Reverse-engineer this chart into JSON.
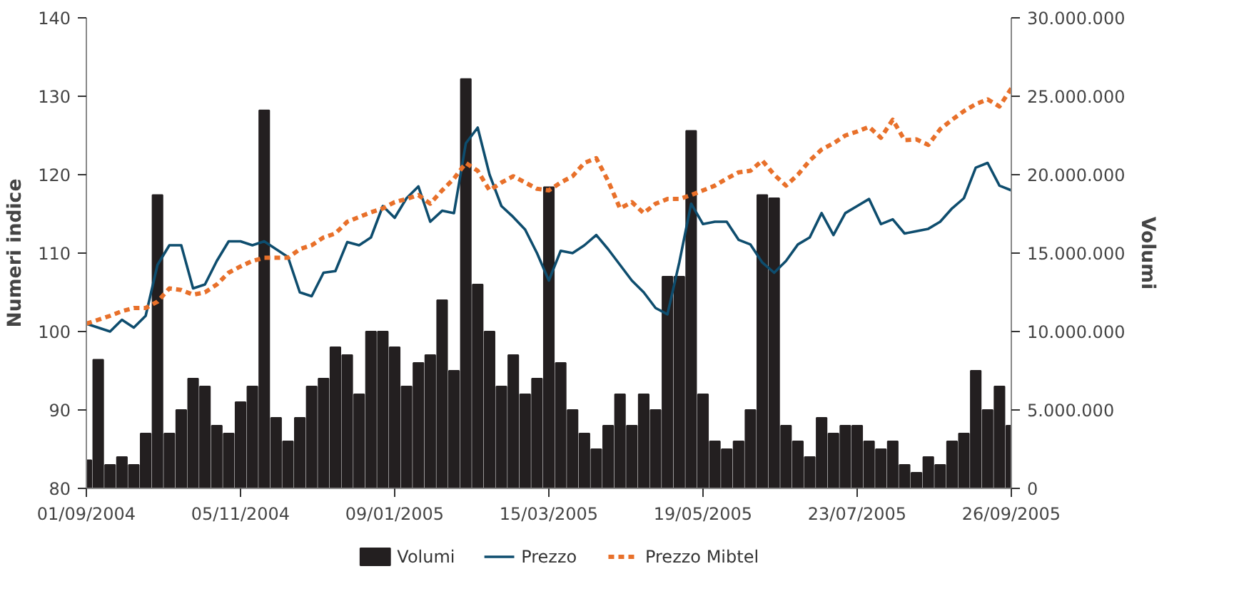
{
  "chart_data": {
    "type": "line",
    "ylabel": "Numeri indice",
    "y2label": "Volumi",
    "x": [
      "2004-09-01",
      "2004-09-06",
      "2004-09-11",
      "2004-09-16",
      "2004-09-21",
      "2004-09-26",
      "2004-10-01",
      "2004-10-06",
      "2004-10-11",
      "2004-10-16",
      "2004-10-21",
      "2004-10-26",
      "2004-10-31",
      "2004-11-05",
      "2004-11-10",
      "2004-11-15",
      "2004-11-20",
      "2004-11-25",
      "2004-11-30",
      "2004-12-05",
      "2004-12-10",
      "2004-12-15",
      "2004-12-20",
      "2004-12-25",
      "2004-12-30",
      "2005-01-04",
      "2005-01-09",
      "2005-01-14",
      "2005-01-19",
      "2005-01-24",
      "2005-01-29",
      "2005-02-03",
      "2005-02-08",
      "2005-02-13",
      "2005-02-18",
      "2005-02-23",
      "2005-02-28",
      "2005-03-05",
      "2005-03-10",
      "2005-03-15",
      "2005-03-20",
      "2005-03-25",
      "2005-03-30",
      "2005-04-04",
      "2005-04-09",
      "2005-04-14",
      "2005-04-19",
      "2005-04-24",
      "2005-04-29",
      "2005-05-04",
      "2005-05-09",
      "2005-05-14",
      "2005-05-19",
      "2005-05-24",
      "2005-05-29",
      "2005-06-03",
      "2005-06-08",
      "2005-06-13",
      "2005-06-18",
      "2005-06-23",
      "2005-06-28",
      "2005-07-03",
      "2005-07-08",
      "2005-07-13",
      "2005-07-18",
      "2005-07-23",
      "2005-07-28",
      "2005-08-02",
      "2005-08-07",
      "2005-08-12",
      "2005-08-17",
      "2005-08-22",
      "2005-08-27",
      "2005-09-01",
      "2005-09-06",
      "2005-09-11",
      "2005-09-16",
      "2005-09-21",
      "2005-09-26"
    ],
    "series": [
      {
        "name": "Volumi",
        "type": "bar",
        "axis": "y2",
        "color": "#231f20",
        "values": [
          1800000,
          8200000,
          1500000,
          2000000,
          1500000,
          3500000,
          18700000,
          3500000,
          5000000,
          7000000,
          6500000,
          4000000,
          3500000,
          5500000,
          6500000,
          24100000,
          4500000,
          3000000,
          4500000,
          6500000,
          7000000,
          9000000,
          8500000,
          6000000,
          10000000,
          10000000,
          9000000,
          6500000,
          8000000,
          8500000,
          12000000,
          7500000,
          26100000,
          13000000,
          10000000,
          6500000,
          8500000,
          6000000,
          7000000,
          19200000,
          8000000,
          5000000,
          3500000,
          2500000,
          4000000,
          6000000,
          4000000,
          6000000,
          5000000,
          13500000,
          13500000,
          22800000,
          6000000,
          3000000,
          2500000,
          3000000,
          5000000,
          18700000,
          18500000,
          4000000,
          3000000,
          2000000,
          4500000,
          3500000,
          4000000,
          4000000,
          3000000,
          2500000,
          3000000,
          1500000,
          1000000,
          2000000,
          1500000,
          3000000,
          3500000,
          7500000,
          5000000,
          6500000,
          4000000
        ]
      },
      {
        "name": "Prezzo",
        "line_style": "solid",
        "color": "#0e4d6e",
        "values": [
          101,
          100.5,
          100,
          101.5,
          100.5,
          102,
          108.5,
          111,
          111,
          105.5,
          106,
          109,
          111.5,
          111.5,
          111,
          111.5,
          110.5,
          109.5,
          105,
          104.5,
          107.5,
          107.7,
          111.4,
          111,
          112,
          116,
          114.5,
          117,
          118.5,
          114,
          115.4,
          115.1,
          124,
          126,
          120,
          116,
          114.6,
          113,
          110,
          106.5,
          110.3,
          110,
          111,
          112.3,
          110.5,
          108.5,
          106.5,
          105,
          103,
          102.2,
          108.8,
          116.3,
          113.7,
          114,
          114,
          111.7,
          111.1,
          108.8,
          107.5,
          109,
          111.1,
          112,
          115.1,
          112.3,
          115.1,
          116,
          116.9,
          113.7,
          114.3,
          112.5,
          112.8,
          113.1,
          114,
          115.7,
          117,
          120.9,
          121.5,
          118.6,
          118
        ]
      },
      {
        "name": "Prezzo Mibtel",
        "line_style": "dashed",
        "color": "#e8702a",
        "values": [
          101,
          101.5,
          102,
          102.6,
          103,
          103,
          103.8,
          105.5,
          105.3,
          104.7,
          105,
          106,
          107.5,
          108.3,
          109,
          109.4,
          109.4,
          109.4,
          110.5,
          111,
          112,
          112.5,
          114,
          114.6,
          115.2,
          115.7,
          116.5,
          116.9,
          117.4,
          116.3,
          118,
          119.5,
          121.5,
          120.5,
          118,
          119,
          119.8,
          119,
          118.2,
          118,
          119,
          119.8,
          121.5,
          122.1,
          119.2,
          115.7,
          116.5,
          115.1,
          116.3,
          116.9,
          116.9,
          117.4,
          118,
          118.6,
          119.5,
          120.3,
          120.5,
          121.8,
          120,
          118.6,
          120,
          121.8,
          123.2,
          124,
          125,
          125.5,
          126.1,
          124.7,
          127,
          124.4,
          124.5,
          123.8,
          125.8,
          127,
          128.1,
          129,
          129.6,
          128.7,
          131
        ]
      }
    ],
    "xlim": [
      "2004-09-01",
      "2005-09-26"
    ],
    "xticks": [
      {
        "value": "2004-09-01",
        "label": "01/09/2004"
      },
      {
        "value": "2004-11-05",
        "label": "05/11/2004"
      },
      {
        "value": "2005-01-09",
        "label": "09/01/2005"
      },
      {
        "value": "2005-03-15",
        "label": "15/03/2005"
      },
      {
        "value": "2005-05-19",
        "label": "19/05/2005"
      },
      {
        "value": "2005-07-23",
        "label": "23/07/2005"
      },
      {
        "value": "2005-09-26",
        "label": "26/09/2005"
      }
    ],
    "ylim": [
      80,
      140
    ],
    "yticks": [
      80,
      90,
      100,
      110,
      120,
      130,
      140
    ],
    "y2lim": [
      0,
      30000000
    ],
    "y2ticks": [
      {
        "value": 0,
        "label": "0"
      },
      {
        "value": 5000000,
        "label": "5.000.000"
      },
      {
        "value": 10000000,
        "label": "10.000.000"
      },
      {
        "value": 15000000,
        "label": "15.000.000"
      },
      {
        "value": 20000000,
        "label": "20.000.000"
      },
      {
        "value": 25000000,
        "label": "25.000.000"
      },
      {
        "value": 30000000,
        "label": "30.000.000"
      }
    ],
    "grid": false,
    "legend": "bottom"
  }
}
